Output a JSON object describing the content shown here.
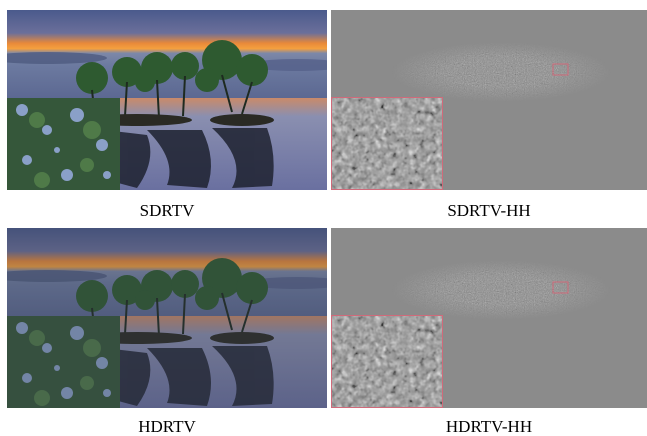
{
  "panels": [
    {
      "caption": "SDRTV"
    },
    {
      "caption": "SDRTV-HH"
    },
    {
      "caption": "HDRTV"
    },
    {
      "caption": "HDRTV-HH"
    }
  ]
}
